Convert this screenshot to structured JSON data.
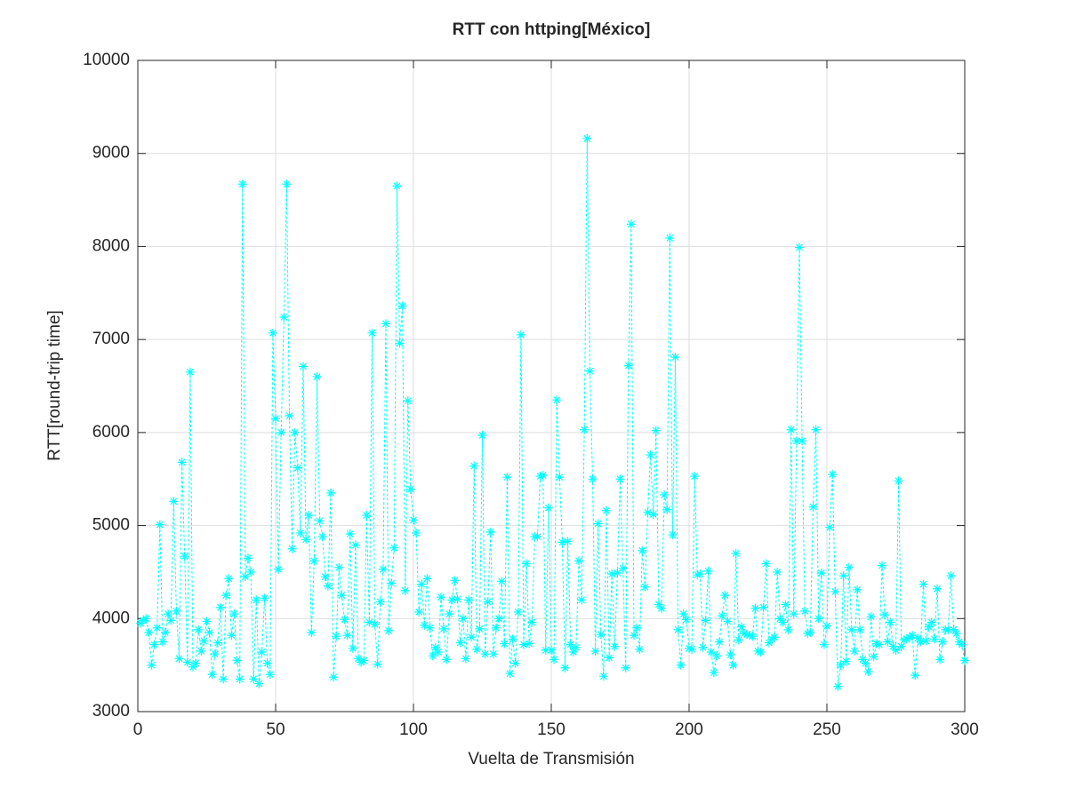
{
  "chart_data": {
    "type": "line",
    "title": "RTT con httping[México]",
    "xlabel": "Vuelta de Transmisión",
    "ylabel": "RTT[round-trip time]",
    "x": [
      1,
      2,
      3,
      4,
      5,
      6,
      7,
      8,
      9,
      10,
      11,
      12,
      13,
      14,
      15,
      16,
      17,
      18,
      19,
      20,
      21,
      22,
      23,
      24,
      25,
      26,
      27,
      28,
      29,
      30,
      31,
      32,
      33,
      34,
      35,
      36,
      37,
      38,
      39,
      40,
      41,
      42,
      43,
      44,
      45,
      46,
      47,
      48,
      49,
      50,
      51,
      52,
      53,
      54,
      55,
      56,
      57,
      58,
      59,
      60,
      61,
      62,
      63,
      64,
      65,
      66,
      67,
      68,
      69,
      70,
      71,
      72,
      73,
      74,
      75,
      76,
      77,
      78,
      79,
      80,
      81,
      82,
      83,
      84,
      85,
      86,
      87,
      88,
      89,
      90,
      91,
      92,
      93,
      94,
      95,
      96,
      97,
      98,
      99,
      100,
      101,
      102,
      103,
      104,
      105,
      106,
      107,
      108,
      109,
      110,
      111,
      112,
      113,
      114,
      115,
      116,
      117,
      118,
      119,
      120,
      121,
      122,
      123,
      124,
      125,
      126,
      127,
      128,
      129,
      130,
      131,
      132,
      133,
      134,
      135,
      136,
      137,
      138,
      139,
      140,
      141,
      142,
      143,
      144,
      145,
      146,
      147,
      148,
      149,
      150,
      151,
      152,
      153,
      154,
      155,
      156,
      157,
      158,
      159,
      160,
      161,
      162,
      163,
      164,
      165,
      166,
      167,
      168,
      169,
      170,
      171,
      172,
      173,
      174,
      175,
      176,
      177,
      178,
      179,
      180,
      181,
      182,
      183,
      184,
      185,
      186,
      187,
      188,
      189,
      190,
      191,
      192,
      193,
      194,
      195,
      196,
      197,
      198,
      199,
      200,
      201,
      202,
      203,
      204,
      205,
      206,
      207,
      208,
      209,
      210,
      211,
      212,
      213,
      214,
      215,
      216,
      217,
      218,
      219,
      220,
      221,
      222,
      223,
      224,
      225,
      226,
      227,
      228,
      229,
      230,
      231,
      232,
      233,
      234,
      235,
      236,
      237,
      238,
      239,
      240,
      241,
      242,
      243,
      244,
      245,
      246,
      247,
      248,
      249,
      250,
      251,
      252,
      253,
      254,
      255,
      256,
      257,
      258,
      259,
      260,
      261,
      262,
      263,
      264,
      265,
      266,
      267,
      268,
      269,
      270,
      271,
      272,
      273,
      274,
      275,
      276,
      277,
      278,
      279,
      280,
      281,
      282,
      283,
      284,
      285,
      286,
      287,
      288,
      289,
      290,
      291,
      292,
      293,
      294,
      295,
      296,
      297,
      298,
      299,
      300
    ],
    "series": [
      {
        "color": "#00ffff",
        "values": [
          3950,
          3980,
          4000,
          3850,
          3500,
          3720,
          3900,
          5010,
          3750,
          3850,
          4050,
          3980,
          5260,
          4080,
          3570,
          5680,
          4670,
          3530,
          6650,
          3480,
          3520,
          3880,
          3650,
          3760,
          3970,
          3850,
          3400,
          3620,
          3740,
          4120,
          3350,
          4250,
          4430,
          3820,
          4050,
          3550,
          3350,
          8670,
          4450,
          4650,
          4500,
          3350,
          4200,
          3300,
          3640,
          4220,
          3520,
          3400,
          7070,
          6150,
          4530,
          6000,
          7240,
          8670,
          6180,
          4750,
          6000,
          5620,
          4920,
          6710,
          4850,
          5110,
          3850,
          4620,
          6600,
          5050,
          4880,
          4450,
          4350,
          5350,
          3370,
          3810,
          4550,
          4250,
          3990,
          3820,
          4910,
          3680,
          4790,
          3570,
          3530,
          3550,
          5110,
          3960,
          7070,
          3940,
          3510,
          4180,
          4530,
          7170,
          3870,
          4380,
          4760,
          8650,
          6960,
          7360,
          4300,
          6340,
          5390,
          5060,
          4920,
          4070,
          4370,
          3930,
          4430,
          3900,
          3600,
          3690,
          3640,
          4230,
          3890,
          3560,
          4050,
          4200,
          4410,
          4210,
          3740,
          4000,
          3570,
          4200,
          3800,
          5640,
          3670,
          3890,
          5970,
          3620,
          4180,
          4930,
          3620,
          3900,
          4000,
          4400,
          3730,
          5520,
          3410,
          3780,
          3520,
          4070,
          7050,
          3720,
          4590,
          3730,
          3960,
          4880,
          4880,
          5530,
          5540,
          3660,
          5190,
          3660,
          3560,
          6350,
          5520,
          4820,
          3470,
          4830,
          3720,
          3640,
          3690,
          4620,
          4200,
          6030,
          9160,
          6660,
          5500,
          3650,
          5020,
          3830,
          3380,
          5160,
          3580,
          4480,
          3700,
          4490,
          5500,
          4540,
          3470,
          6720,
          8240,
          3820,
          3900,
          3670,
          4730,
          4340,
          5140,
          5760,
          5120,
          6020,
          4150,
          4110,
          5330,
          5170,
          8090,
          4900,
          6810,
          3880,
          3500,
          4050,
          3990,
          3680,
          3670,
          5530,
          4470,
          4480,
          3690,
          3980,
          4510,
          3640,
          3420,
          3600,
          3750,
          4030,
          4250,
          3970,
          3610,
          3500,
          4700,
          3770,
          3910,
          3840,
          3830,
          3820,
          3810,
          4110,
          3650,
          3640,
          4120,
          4590,
          3740,
          3780,
          3800,
          4500,
          4000,
          3960,
          4150,
          3880,
          6030,
          4050,
          5910,
          7990,
          5910,
          4080,
          3840,
          3850,
          5200,
          6030,
          4000,
          4490,
          3720,
          3920,
          4980,
          5550,
          4290,
          3270,
          3500,
          4460,
          3540,
          4550,
          3880,
          3650,
          4310,
          3880,
          3560,
          3520,
          3430,
          4020,
          3590,
          3730,
          3720,
          4570,
          4040,
          3750,
          3960,
          3700,
          3660,
          5480,
          3700,
          3770,
          3780,
          3800,
          3820,
          3390,
          3790,
          3750,
          4370,
          3760,
          3910,
          3960,
          3780,
          4320,
          3560,
          3750,
          3880,
          3880,
          4460,
          3880,
          3840,
          3750,
          3720,
          3550
        ]
      }
    ],
    "xlim": [
      0,
      300
    ],
    "xticks": [
      0,
      50,
      100,
      150,
      200,
      250,
      300
    ],
    "ylim": [
      3000,
      10000
    ],
    "yticks": [
      3000,
      4000,
      5000,
      6000,
      7000,
      8000,
      9000,
      10000
    ],
    "grid": true
  }
}
